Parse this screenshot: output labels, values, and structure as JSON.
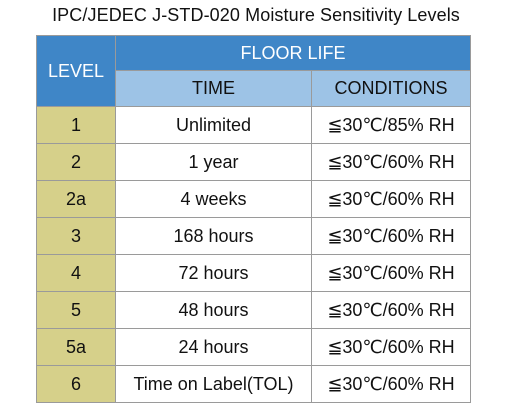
{
  "title": "IPC/JEDEC J-STD-020 Moisture Sensitivity Levels",
  "header": {
    "level": "LEVEL",
    "floor_life": "FLOOR LIFE",
    "time": "TIME",
    "conditions": "CONDITIONS"
  },
  "colors": {
    "header_dark": "#3f86c7",
    "header_light": "#9dc3e6",
    "level_column": "#d6d08a",
    "cell_background": "#ffffff"
  },
  "rows": [
    {
      "level": "1",
      "time": "Unlimited",
      "conditions": "≦30℃/85% RH"
    },
    {
      "level": "2",
      "time": "1 year",
      "conditions": "≦30℃/60% RH"
    },
    {
      "level": "2a",
      "time": "4 weeks",
      "conditions": "≦30℃/60% RH"
    },
    {
      "level": "3",
      "time": "168 hours",
      "conditions": "≦30℃/60% RH"
    },
    {
      "level": "4",
      "time": "72 hours",
      "conditions": "≦30℃/60% RH"
    },
    {
      "level": "5",
      "time": "48 hours",
      "conditions": "≦30℃/60% RH"
    },
    {
      "level": "5a",
      "time": "24 hours",
      "conditions": "≦30℃/60% RH"
    },
    {
      "level": "6",
      "time": "Time on Label(TOL)",
      "conditions": "≦30℃/60% RH"
    }
  ]
}
